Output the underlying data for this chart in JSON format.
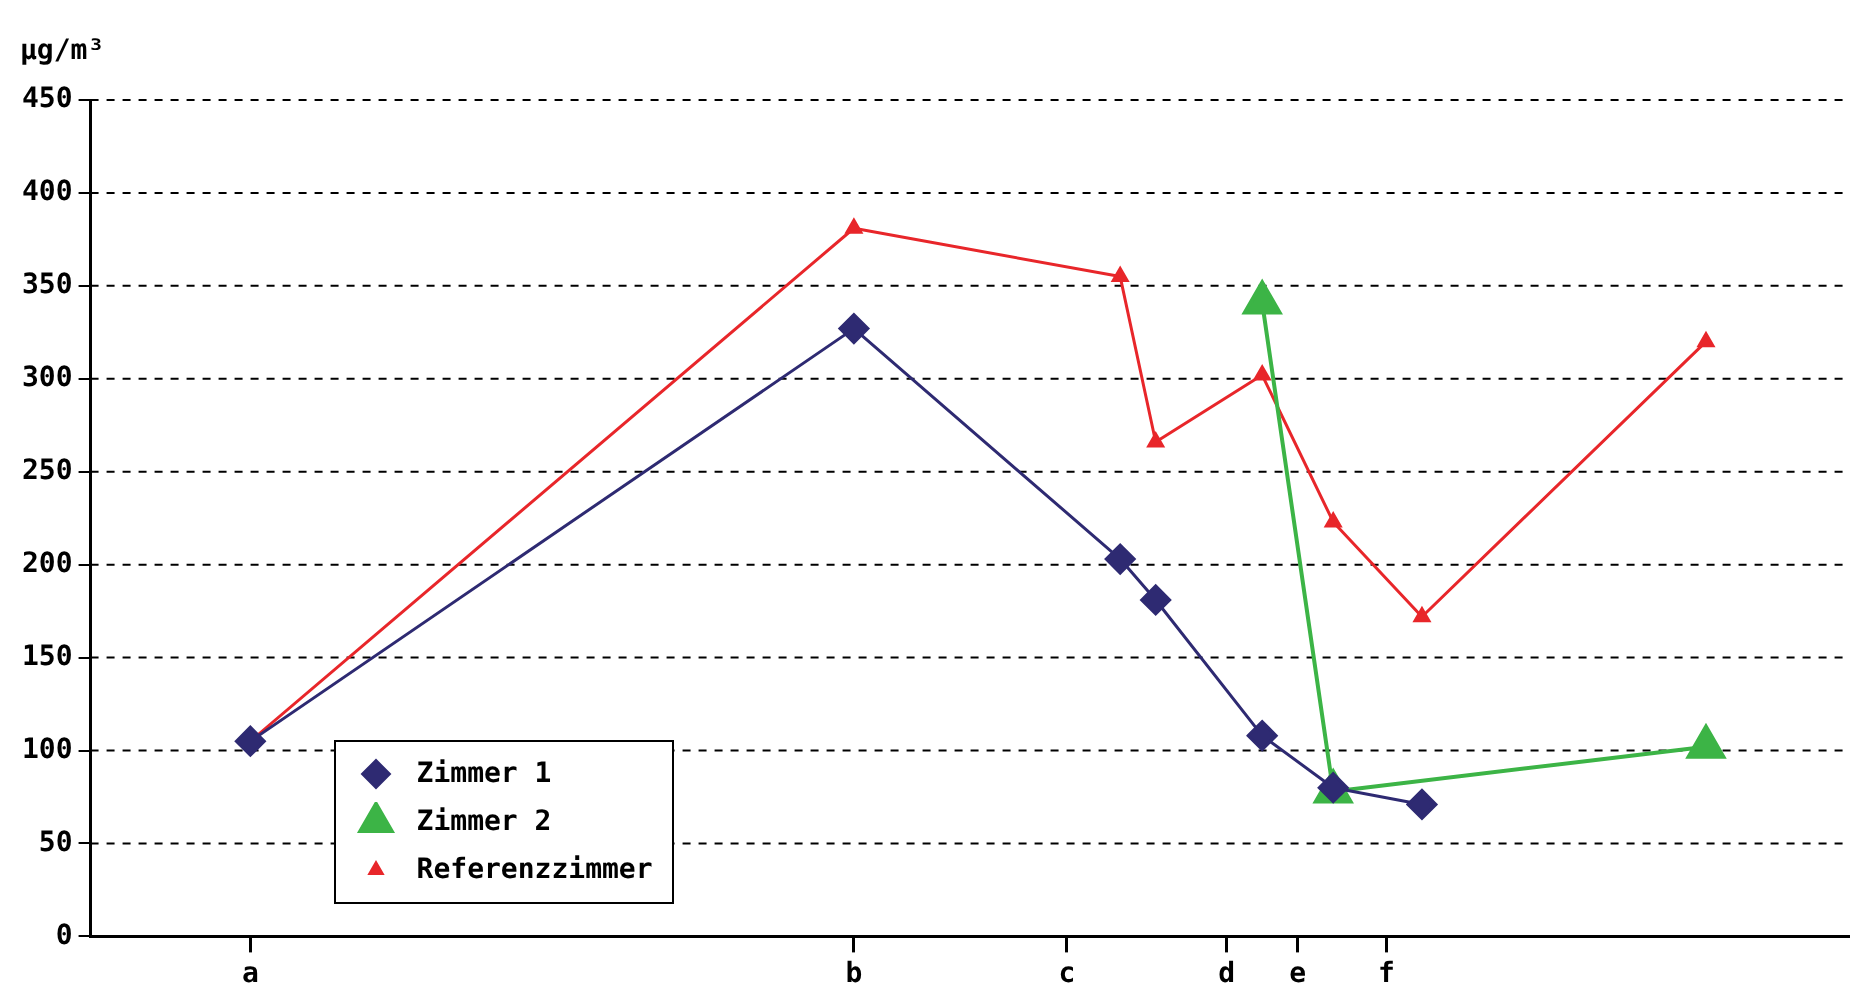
{
  "chart_data": {
    "type": "line",
    "ylabel": "µg/m³",
    "categories": [
      null,
      null,
      null,
      null,
      null,
      null,
      null,
      null,
      null,
      "a",
      null,
      null,
      null,
      null,
      null,
      null,
      null,
      null,
      null,
      null,
      null,
      null,
      null,
      null,
      null,
      null,
      null,
      null,
      null,
      null,
      null,
      null,
      null,
      null,
      null,
      null,
      null,
      null,
      null,
      null,
      null,
      null,
      null,
      "b",
      null,
      null,
      null,
      null,
      null,
      null,
      null,
      null,
      null,
      null,
      null,
      "c",
      null,
      null,
      null,
      null,
      null,
      null,
      null,
      null,
      "d",
      null,
      null,
      null,
      "e",
      null,
      null,
      null,
      null,
      "f",
      null,
      null,
      null,
      null,
      null,
      null,
      null,
      null,
      null,
      null,
      null,
      null,
      null,
      null,
      null,
      null,
      null,
      null,
      null,
      null,
      null,
      null,
      null,
      null,
      null,
      null
    ],
    "ylim": [
      0,
      450
    ],
    "yticks": [
      0,
      50,
      100,
      150,
      200,
      250,
      300,
      350,
      400,
      450
    ],
    "grid": "y",
    "legend": "bottom left",
    "series": [
      {
        "name": "Zimmer 1",
        "color": "#2e2a72",
        "marker": "diamond",
        "values": [
          null,
          null,
          null,
          null,
          null,
          null,
          null,
          null,
          null,
          105,
          null,
          null,
          null,
          null,
          null,
          null,
          null,
          null,
          null,
          null,
          null,
          null,
          null,
          null,
          null,
          null,
          null,
          null,
          null,
          null,
          null,
          null,
          null,
          null,
          null,
          null,
          null,
          null,
          null,
          null,
          null,
          null,
          null,
          327,
          null,
          null,
          null,
          null,
          null,
          null,
          null,
          null,
          null,
          null,
          null,
          null,
          null,
          null,
          203,
          null,
          181,
          null,
          null,
          null,
          null,
          null,
          108,
          null,
          null,
          null,
          80,
          null,
          null,
          null,
          null,
          71,
          null,
          null,
          null,
          null,
          null,
          null,
          null,
          null,
          null,
          null,
          null,
          null,
          null,
          null,
          null,
          null,
          null,
          null,
          null,
          null,
          null,
          null,
          null,
          null
        ]
      },
      {
        "name": "Zimmer 2",
        "color": "#3cb446",
        "marker": "triangle",
        "values": [
          null,
          null,
          null,
          null,
          null,
          null,
          null,
          null,
          null,
          null,
          null,
          null,
          null,
          null,
          null,
          null,
          null,
          null,
          null,
          null,
          null,
          null,
          null,
          null,
          null,
          null,
          null,
          null,
          null,
          null,
          null,
          null,
          null,
          null,
          null,
          null,
          null,
          null,
          null,
          null,
          null,
          null,
          null,
          null,
          null,
          null,
          null,
          null,
          null,
          null,
          null,
          null,
          null,
          null,
          null,
          null,
          null,
          null,
          null,
          null,
          null,
          null,
          null,
          null,
          null,
          null,
          341,
          null,
          null,
          null,
          78,
          null,
          null,
          null,
          null,
          null,
          null,
          null,
          null,
          null,
          null,
          null,
          null,
          null,
          null,
          null,
          null,
          null,
          null,
          null,
          null,
          102,
          null,
          null,
          null,
          null,
          null,
          null,
          null,
          null
        ]
      },
      {
        "name": "Referenzzimmer",
        "color": "#e8262a",
        "marker": "triangle",
        "values": [
          null,
          null,
          null,
          null,
          null,
          null,
          null,
          null,
          null,
          105,
          null,
          null,
          null,
          null,
          null,
          null,
          null,
          null,
          null,
          null,
          null,
          null,
          null,
          null,
          null,
          null,
          null,
          null,
          null,
          null,
          null,
          null,
          null,
          null,
          null,
          null,
          null,
          null,
          null,
          null,
          null,
          null,
          null,
          381,
          null,
          null,
          null,
          null,
          null,
          null,
          null,
          null,
          null,
          null,
          null,
          null,
          null,
          null,
          355,
          null,
          266,
          null,
          null,
          null,
          null,
          null,
          302,
          null,
          null,
          null,
          223,
          null,
          null,
          null,
          null,
          172,
          null,
          null,
          null,
          null,
          null,
          null,
          null,
          null,
          null,
          null,
          null,
          null,
          null,
          null,
          null,
          320,
          null,
          null,
          null,
          null,
          null,
          null,
          null,
          null
        ]
      }
    ]
  }
}
